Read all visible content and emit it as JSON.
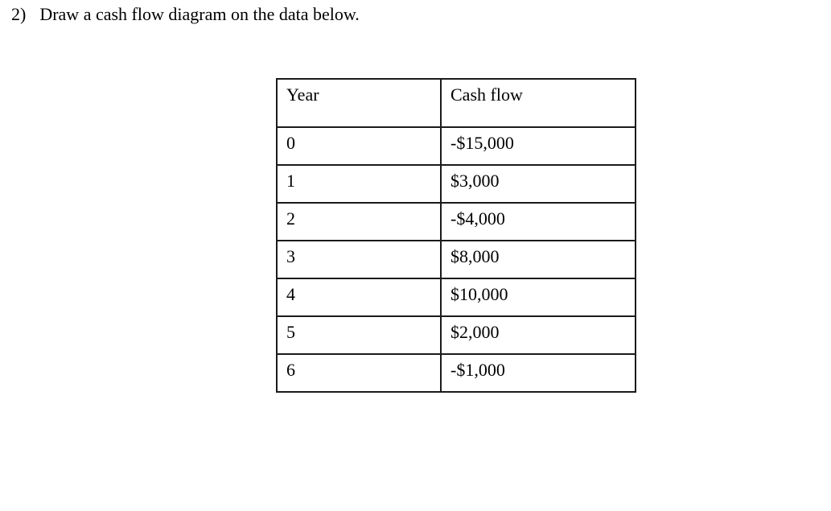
{
  "question": {
    "number": "2)",
    "text": "Draw a cash flow diagram on the data below."
  },
  "table": {
    "headers": [
      "Year",
      "Cash flow"
    ],
    "rows": [
      {
        "year": "0",
        "cash_flow": "-$15,000"
      },
      {
        "year": "1",
        "cash_flow": "$3,000"
      },
      {
        "year": "2",
        "cash_flow": "-$4,000"
      },
      {
        "year": "3",
        "cash_flow": "$8,000"
      },
      {
        "year": "4",
        "cash_flow": "$10,000"
      },
      {
        "year": "5",
        "cash_flow": "$2,000"
      },
      {
        "year": "6",
        "cash_flow": "-$1,000"
      }
    ]
  },
  "colors": {
    "text": "#000000",
    "border": "#1b1b1b",
    "background": "#ffffff"
  }
}
